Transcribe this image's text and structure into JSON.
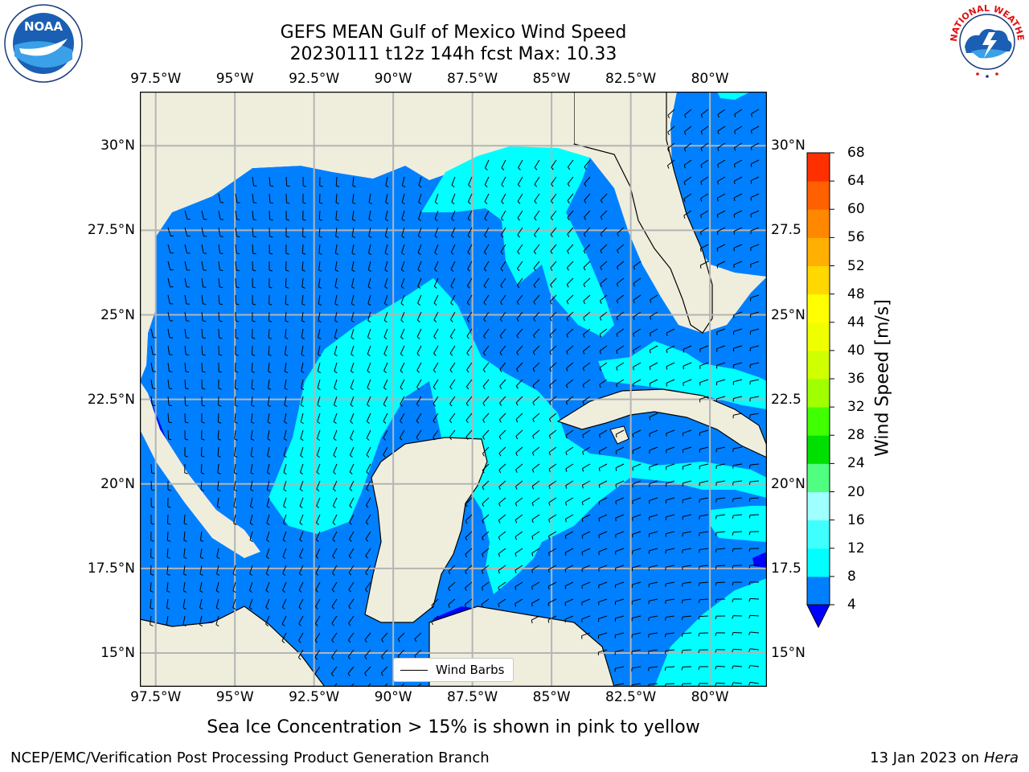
{
  "title": {
    "line1": "GEFS MEAN Gulf of Mexico Wind Speed",
    "line2": "20230111 t12z 144h fcst   Max: 10.33"
  },
  "axes": {
    "lon_labels": [
      "97.5°W",
      "95°W",
      "92.5°W",
      "90°W",
      "87.5°W",
      "85°W",
      "82.5°W",
      "80°W"
    ],
    "lon_values": [
      -97.5,
      -95,
      -92.5,
      -90,
      -87.5,
      -85,
      -82.5,
      -80
    ],
    "lat_labels": [
      "30°N",
      "27.5°N",
      "25°N",
      "22.5°N",
      "20°N",
      "17.5°N",
      "15°N"
    ],
    "lat_labels_right": [
      "30°N",
      "27.5",
      "25°N",
      "22.5",
      "20°N",
      "17.5",
      "15°N"
    ],
    "lat_values": [
      30,
      27.5,
      25,
      22.5,
      20,
      17.5,
      15
    ],
    "lon_range": [
      -98,
      -78.2
    ],
    "lat_range": [
      14,
      31.6
    ]
  },
  "colorbar": {
    "title": "Wind Speed [m/s]",
    "ticks": [
      "68",
      "64",
      "60",
      "56",
      "52",
      "48",
      "44",
      "40",
      "36",
      "32",
      "28",
      "24",
      "20",
      "16",
      "12",
      "8",
      "4"
    ],
    "levels": [
      4,
      8,
      12,
      16,
      20,
      24,
      28,
      32,
      36,
      40,
      44,
      48,
      52,
      56,
      60,
      64,
      68
    ],
    "colors": [
      "#0080ff",
      "#00ffff",
      "#40ffff",
      "#a0ffff",
      "#50ff80",
      "#00e000",
      "#40ff00",
      "#a0ff00",
      "#d0ff00",
      "#f0ff00",
      "#ffff00",
      "#ffd800",
      "#ffb000",
      "#ff8800",
      "#ff6000",
      "#ff3000",
      "#ff0000"
    ],
    "under_color": "#0000ff"
  },
  "legend": {
    "label": "Wind Barbs"
  },
  "caption": "Sea Ice Concentration > 15% is shown in pink to yellow",
  "footer": {
    "left": "NCEP/EMC/Verification Post Processing Product Generation Branch",
    "right_date": "13 Jan 2023 on ",
    "right_host": "Hera"
  },
  "logos": {
    "noaa_text": "NOAA",
    "nws_text": "NATIONAL WEATHER SERVICE"
  },
  "colors": {
    "land": "#efeedd",
    "grid": "#b4b4b4",
    "speed_4_8": "#0080ff",
    "speed_8_12": "#00ffff",
    "speed_lt4": "#0000ff"
  }
}
